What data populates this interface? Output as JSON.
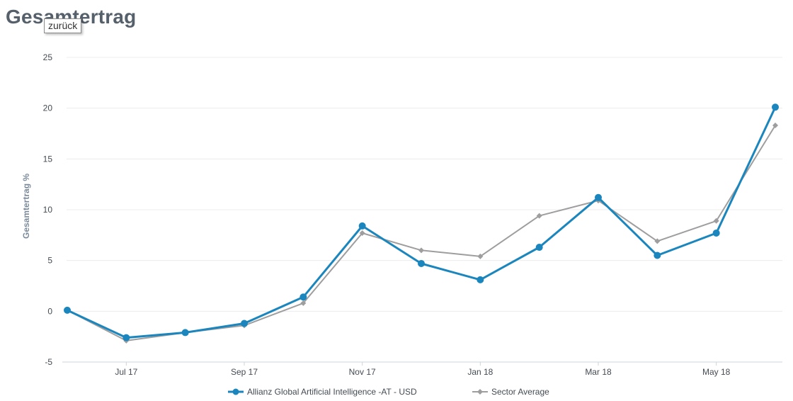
{
  "header": {
    "title": "Gesamtertrag",
    "tooltip": "zurück"
  },
  "colors": {
    "fund": "#1a86bd",
    "sector": "#9e9e9e",
    "grid": "#ececec",
    "axis": "#444b53"
  },
  "chart_data": {
    "type": "line",
    "title": "Gesamtertrag",
    "xlabel": "",
    "ylabel": "Gesamtertrag %",
    "ylim": [
      -5,
      25
    ],
    "yticks": [
      -5,
      0,
      5,
      10,
      15,
      20,
      25
    ],
    "grid": true,
    "legend_position": "bottom",
    "x": [
      "Jun 17",
      "Jul 17",
      "Aug 17",
      "Sep 17",
      "Oct 17",
      "Nov 17",
      "Dec 17",
      "Jan 18",
      "Feb 18",
      "Mar 18",
      "Apr 18",
      "May 18",
      "Jun 18"
    ],
    "x_tick_labels": [
      "Jul 17",
      "Sep 17",
      "Nov 17",
      "Jan 18",
      "Mar 18",
      "May 18"
    ],
    "series": [
      {
        "name": "Allianz Global Artificial Intelligence -AT - USD",
        "marker": "circle",
        "color_key": "fund",
        "values": [
          0.1,
          -2.6,
          -2.1,
          -1.2,
          1.4,
          8.4,
          4.7,
          3.1,
          6.3,
          11.2,
          5.5,
          7.7,
          20.1
        ]
      },
      {
        "name": "Sector Average",
        "marker": "diamond",
        "color_key": "sector",
        "values": [
          0.1,
          -2.9,
          -2.1,
          -1.4,
          0.8,
          7.7,
          6.0,
          5.4,
          9.4,
          10.9,
          6.9,
          8.9,
          18.3
        ]
      }
    ]
  }
}
